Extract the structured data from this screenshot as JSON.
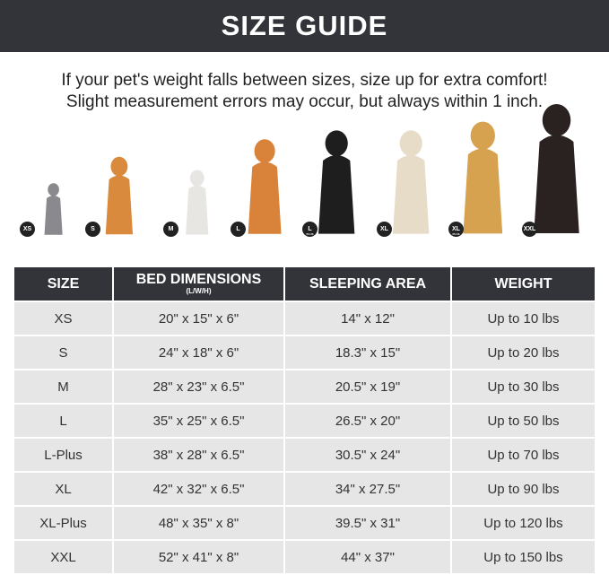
{
  "title": "SIZE GUIDE",
  "notes": [
    "If your pet's weight falls between sizes, size up for extra comfort!",
    "Slight measurement errors may occur, but always within 1 inch."
  ],
  "pets": [
    {
      "badge": "XS",
      "sub": "",
      "animal": "cat",
      "color": "#8a8a8e"
    },
    {
      "badge": "S",
      "sub": "",
      "animal": "pomeranian",
      "color": "#d98a3c"
    },
    {
      "badge": "M",
      "sub": "",
      "animal": "french-bulldog",
      "color": "#e8e6e2"
    },
    {
      "badge": "L",
      "sub": "",
      "animal": "shiba-inu",
      "color": "#d9823a"
    },
    {
      "badge": "L",
      "sub": "PLUS",
      "animal": "border-collie",
      "color": "#1e1e1e"
    },
    {
      "badge": "XL",
      "sub": "",
      "animal": "labrador",
      "color": "#e6dcc8"
    },
    {
      "badge": "XL",
      "sub": "PLUS",
      "animal": "golden-retriever",
      "color": "#d6a250"
    },
    {
      "badge": "XXL",
      "sub": "",
      "animal": "doberman",
      "color": "#2a2220"
    }
  ],
  "table": {
    "headers": [
      "SIZE",
      "BED DIMENSIONS",
      "SLEEPING AREA",
      "WEIGHT"
    ],
    "header_sub": "(L/W/H)",
    "rows": [
      [
        "XS",
        "20\" x 15\" x 6\"",
        "14\" x 12\"",
        "Up to 10 lbs"
      ],
      [
        "S",
        "24\" x 18\" x 6\"",
        "18.3\" x 15\"",
        "Up to 20 lbs"
      ],
      [
        "M",
        "28\" x 23\" x 6.5\"",
        "20.5\" x 19\"",
        "Up to 30 lbs"
      ],
      [
        "L",
        "35\" x 25\" x 6.5\"",
        "26.5\" x 20\"",
        "Up to 50 lbs"
      ],
      [
        "L-Plus",
        "38\" x 28\" x 6.5\"",
        "30.5\" x 24\"",
        "Up to 70 lbs"
      ],
      [
        "XL",
        "42\" x 32\" x 6.5\"",
        "34\" x 27.5\"",
        "Up to 90 lbs"
      ],
      [
        "XL-Plus",
        "48\" x 35\" x 8\"",
        "39.5\" x 31\"",
        "Up to 120 lbs"
      ],
      [
        "XXL",
        "52\" x 41\" x 8\"",
        "44\" x 37\"",
        "Up to 150 lbs"
      ]
    ]
  }
}
